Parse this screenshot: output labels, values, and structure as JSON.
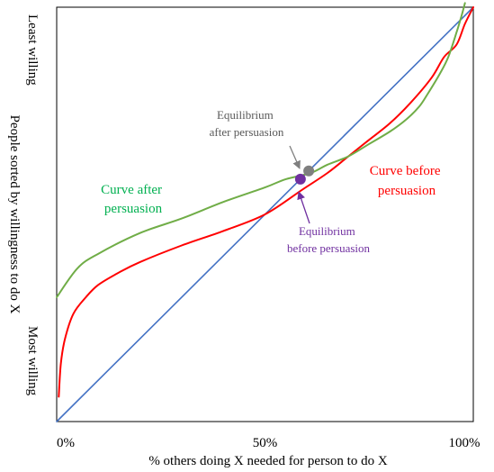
{
  "chart_data": {
    "type": "line",
    "xlabel": "% others doing X needed for person to do X",
    "ylabel": "People sorted by willingness to do X",
    "y_top_label": "Least willing",
    "y_bottom_label": "Most willing",
    "x_tick_labels": [
      {
        "value": 0,
        "label": "0%"
      },
      {
        "value": 50,
        "label": "50%"
      },
      {
        "value": 100,
        "label": "100%"
      }
    ],
    "xlim": [
      0,
      100
    ],
    "ylim": [
      0,
      100
    ],
    "grid": false,
    "legend": "none",
    "series": [
      {
        "key": "diagonal",
        "color": "#4472C4",
        "x": [
          0,
          100
        ],
        "y": [
          0,
          100
        ]
      },
      {
        "key": "before",
        "color": "#FF0000",
        "x": [
          0.5,
          1,
          2,
          4,
          7,
          10,
          15,
          20,
          30,
          40,
          50,
          59,
          65,
          70,
          75,
          80,
          85,
          90,
          93,
          96,
          98,
          100
        ],
        "y": [
          6,
          14,
          20,
          26,
          30,
          33,
          36,
          38.5,
          42.5,
          46,
          50,
          56,
          60,
          64,
          68,
          72,
          77,
          83,
          88,
          91,
          96,
          100
        ]
      },
      {
        "key": "after",
        "color": "#70AD47",
        "x": [
          0,
          5,
          10,
          20,
          30,
          40,
          50,
          55,
          61,
          65,
          70,
          75,
          80,
          84,
          87,
          89,
          92,
          94,
          96,
          97.2,
          98
        ],
        "y": [
          30,
          37,
          40.5,
          45.5,
          49,
          53,
          56.5,
          58.5,
          60,
          62,
          64,
          67,
          70,
          73,
          76,
          79,
          84,
          88,
          94,
          98,
          101
        ]
      }
    ],
    "points": [
      {
        "key": "eq_after",
        "x": 60.5,
        "y": 60.5,
        "color": "#7F7F7F"
      },
      {
        "key": "eq_before",
        "x": 58.5,
        "y": 58.5,
        "color": "#7030A0"
      }
    ],
    "annotations": {
      "curve_after": {
        "lines": [
          "Curve after",
          "persuasion"
        ],
        "color": "#00B050"
      },
      "curve_before": {
        "lines": [
          "Curve before",
          "persuasion"
        ],
        "color": "#FF0000"
      },
      "eq_after": {
        "lines": [
          "Equilibrium",
          "after persuasion"
        ],
        "color": "#595959"
      },
      "eq_before": {
        "lines": [
          "Equilibrium",
          "before persuasion"
        ],
        "color": "#7030A0"
      }
    }
  }
}
